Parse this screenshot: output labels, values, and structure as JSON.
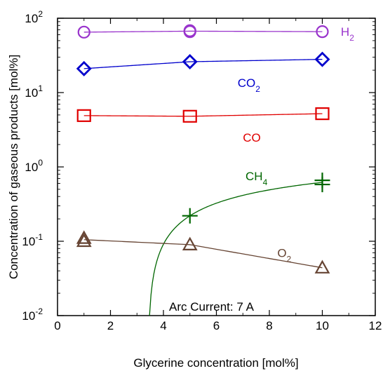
{
  "chart_data": {
    "type": "scatter",
    "xlabel": "Glycerine concentration [mol%]",
    "ylabel": "Concentration of gaseous products [mol%]",
    "xlim": [
      0,
      12
    ],
    "ylim": [
      0.01,
      100
    ],
    "yscale": "log",
    "x_ticks": [
      "0",
      "2",
      "4",
      "6",
      "8",
      "10",
      "12"
    ],
    "y_ticks": [
      {
        "base": "10",
        "exp": "-2"
      },
      {
        "base": "10",
        "exp": "-1"
      },
      {
        "base": "10",
        "exp": "0"
      },
      {
        "base": "10",
        "exp": "1"
      },
      {
        "base": "10",
        "exp": "2"
      }
    ],
    "grid": false,
    "annotation": "Arc Current: 7 A",
    "series": [
      {
        "label_main": "H",
        "label_sub": "2",
        "marker": "circle",
        "color": "#9933cc",
        "x": [
          1,
          5,
          5,
          10
        ],
        "y": [
          65,
          66,
          68,
          66
        ]
      },
      {
        "label_main": "CO",
        "label_sub": "2",
        "marker": "diamond",
        "color": "#0000cc",
        "x": [
          1,
          5,
          10
        ],
        "y": [
          21,
          26,
          28
        ]
      },
      {
        "label_main": "CO",
        "label_sub": "",
        "marker": "square",
        "color": "#e00000",
        "x": [
          1,
          5,
          10
        ],
        "y": [
          4.9,
          4.8,
          5.2
        ]
      },
      {
        "label_main": "CH",
        "label_sub": "4",
        "marker": "plus",
        "color": "#006600",
        "x": [
          5,
          10,
          10
        ],
        "y": [
          0.22,
          0.58,
          0.66
        ]
      },
      {
        "label_main": "O",
        "label_sub": "2",
        "marker": "triangle",
        "color": "#664433",
        "x": [
          1,
          1,
          5,
          10
        ],
        "y": [
          0.1,
          0.11,
          0.09,
          0.044
        ]
      }
    ]
  }
}
